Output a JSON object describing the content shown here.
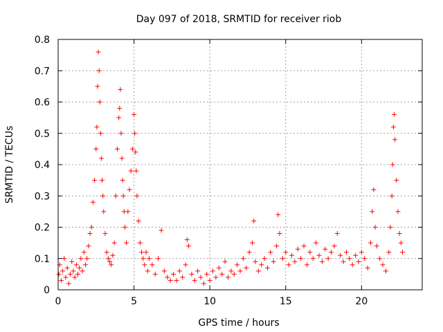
{
  "chart_data": {
    "type": "scatter",
    "title": "Day 097 of 2018, SRMTID for receiver riob",
    "xlabel": "GPS time / hours",
    "ylabel": "SRMTID / TECUs",
    "xlim": [
      0,
      24
    ],
    "ylim": [
      0,
      0.8
    ],
    "xticks": [
      0,
      5,
      10,
      15,
      20
    ],
    "xtick_labels": [
      "0",
      "5",
      "10",
      "15",
      "20"
    ],
    "yticks": [
      0,
      0.1,
      0.2,
      0.3,
      0.4,
      0.5,
      0.6,
      0.7,
      0.8
    ],
    "ytick_labels": [
      "0",
      "0.1",
      "0.2",
      "0.3",
      "0.4",
      "0.5",
      "0.6",
      "0.7",
      "0.8"
    ],
    "grid": true,
    "marker": "+",
    "color": "#ff0000",
    "series": [
      {
        "name": "SRMTID",
        "x": [
          0.05,
          0.1,
          0.2,
          0.3,
          0.4,
          0.5,
          0.6,
          0.7,
          0.8,
          0.9,
          1.0,
          1.1,
          1.2,
          1.3,
          1.4,
          1.5,
          1.6,
          1.7,
          1.8,
          1.9,
          2.0,
          2.1,
          2.2,
          2.3,
          2.4,
          2.5,
          2.55,
          2.6,
          2.65,
          2.7,
          2.75,
          2.8,
          2.85,
          2.9,
          2.95,
          3.0,
          3.1,
          3.2,
          3.3,
          3.4,
          3.5,
          3.6,
          3.7,
          3.8,
          3.9,
          4.0,
          4.05,
          4.1,
          4.15,
          4.2,
          4.25,
          4.3,
          4.35,
          4.4,
          4.5,
          4.6,
          4.7,
          4.8,
          4.9,
          5.0,
          5.05,
          5.1,
          5.15,
          5.2,
          5.3,
          5.4,
          5.5,
          5.6,
          5.7,
          5.8,
          5.9,
          6.0,
          6.2,
          6.4,
          6.6,
          6.8,
          7.0,
          7.2,
          7.4,
          7.6,
          7.8,
          8.0,
          8.2,
          8.4,
          8.5,
          8.6,
          8.8,
          9.0,
          9.2,
          9.4,
          9.6,
          9.8,
          10.0,
          10.2,
          10.4,
          10.6,
          10.8,
          11.0,
          11.2,
          11.4,
          11.6,
          11.8,
          12.0,
          12.2,
          12.4,
          12.6,
          12.8,
          12.9,
          13.0,
          13.2,
          13.4,
          13.6,
          13.8,
          14.0,
          14.2,
          14.4,
          14.5,
          14.6,
          14.8,
          15.0,
          15.2,
          15.4,
          15.6,
          15.8,
          16.0,
          16.2,
          16.4,
          16.6,
          16.8,
          17.0,
          17.2,
          17.4,
          17.6,
          17.8,
          18.0,
          18.2,
          18.4,
          18.6,
          18.8,
          19.0,
          19.2,
          19.4,
          19.6,
          19.8,
          20.0,
          20.2,
          20.4,
          20.6,
          20.7,
          20.8,
          20.9,
          21.0,
          21.2,
          21.4,
          21.6,
          21.8,
          21.9,
          22.0,
          22.05,
          22.1,
          22.15,
          22.2,
          22.3,
          22.4,
          22.5,
          22.6,
          22.7
        ],
        "y": [
          0.05,
          0.08,
          0.03,
          0.06,
          0.1,
          0.04,
          0.07,
          0.02,
          0.05,
          0.09,
          0.06,
          0.04,
          0.08,
          0.05,
          0.07,
          0.1,
          0.06,
          0.12,
          0.08,
          0.1,
          0.14,
          0.18,
          0.2,
          0.28,
          0.35,
          0.45,
          0.52,
          0.65,
          0.76,
          0.7,
          0.6,
          0.5,
          0.42,
          0.35,
          0.3,
          0.25,
          0.18,
          0.12,
          0.1,
          0.09,
          0.08,
          0.11,
          0.15,
          0.3,
          0.45,
          0.55,
          0.58,
          0.64,
          0.5,
          0.42,
          0.35,
          0.3,
          0.25,
          0.2,
          0.15,
          0.25,
          0.32,
          0.38,
          0.45,
          0.56,
          0.5,
          0.44,
          0.38,
          0.3,
          0.22,
          0.15,
          0.12,
          0.1,
          0.08,
          0.12,
          0.06,
          0.1,
          0.08,
          0.05,
          0.1,
          0.19,
          0.06,
          0.04,
          0.03,
          0.05,
          0.03,
          0.06,
          0.04,
          0.08,
          0.16,
          0.14,
          0.05,
          0.03,
          0.06,
          0.04,
          0.02,
          0.05,
          0.03,
          0.06,
          0.04,
          0.07,
          0.05,
          0.09,
          0.04,
          0.06,
          0.05,
          0.08,
          0.06,
          0.1,
          0.07,
          0.12,
          0.15,
          0.22,
          0.09,
          0.06,
          0.08,
          0.1,
          0.07,
          0.12,
          0.09,
          0.14,
          0.24,
          0.18,
          0.1,
          0.12,
          0.08,
          0.11,
          0.09,
          0.13,
          0.1,
          0.14,
          0.08,
          0.12,
          0.1,
          0.15,
          0.11,
          0.09,
          0.13,
          0.1,
          0.12,
          0.14,
          0.18,
          0.11,
          0.09,
          0.12,
          0.1,
          0.08,
          0.11,
          0.09,
          0.12,
          0.1,
          0.07,
          0.15,
          0.25,
          0.32,
          0.2,
          0.14,
          0.1,
          0.08,
          0.06,
          0.12,
          0.2,
          0.3,
          0.4,
          0.52,
          0.56,
          0.48,
          0.35,
          0.25,
          0.18,
          0.15,
          0.12
        ]
      }
    ]
  }
}
